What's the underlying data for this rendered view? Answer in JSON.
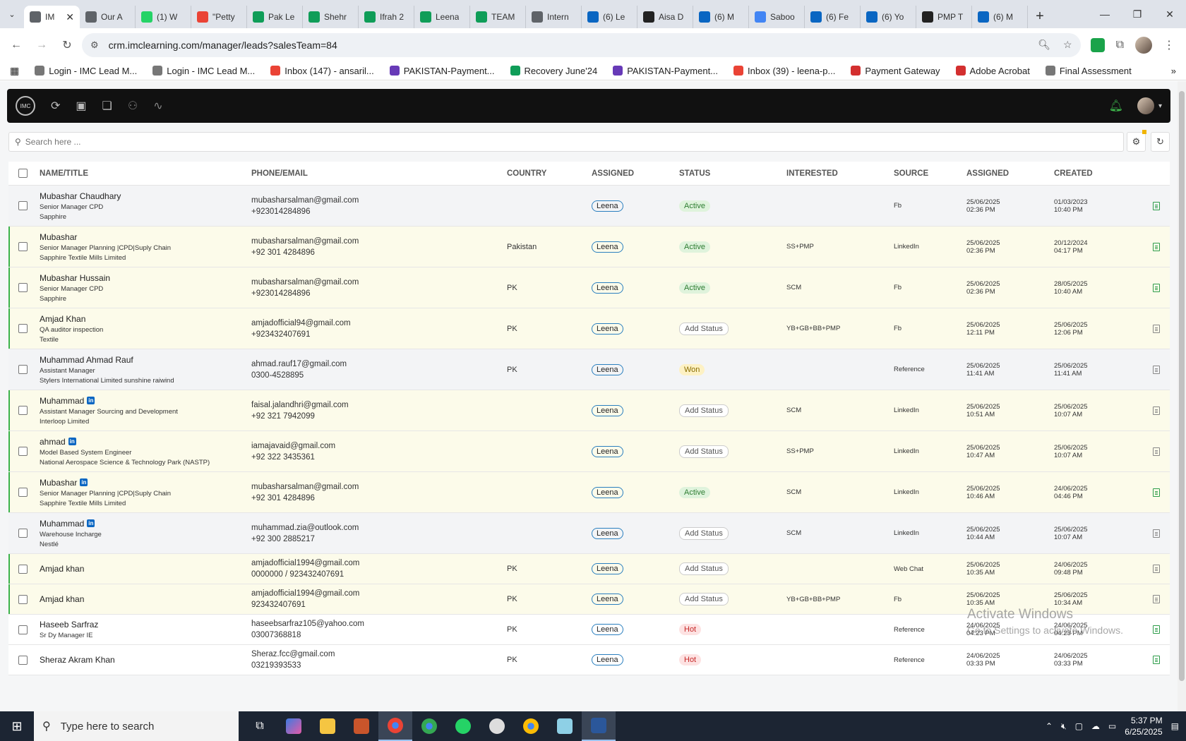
{
  "browser": {
    "tabs": [
      {
        "label": "IM",
        "active": true,
        "color": "#5f6368"
      },
      {
        "label": "Our A",
        "color": "#5f6368"
      },
      {
        "label": "(1) W",
        "color": "#25d366"
      },
      {
        "label": "\"Petty",
        "color": "#ea4335"
      },
      {
        "label": "Pak Le",
        "color": "#0f9d58"
      },
      {
        "label": "Shehr",
        "color": "#0f9d58"
      },
      {
        "label": "Ifrah 2",
        "color": "#0f9d58"
      },
      {
        "label": "Leena",
        "color": "#0f9d58"
      },
      {
        "label": "TEAM",
        "color": "#0f9d58"
      },
      {
        "label": "Intern",
        "color": "#5f6368"
      },
      {
        "label": "(6) Le",
        "color": "#0a66c2"
      },
      {
        "label": "Aisa D",
        "color": "#222"
      },
      {
        "label": "(6) M",
        "color": "#0a66c2"
      },
      {
        "label": "Saboo",
        "color": "#4285f4"
      },
      {
        "label": "(6) Fe",
        "color": "#0a66c2"
      },
      {
        "label": "(6) Yo",
        "color": "#0a66c2"
      },
      {
        "label": "PMP T",
        "color": "#222"
      },
      {
        "label": "(6) M",
        "color": "#0a66c2"
      }
    ],
    "url": "crm.imclearning.com/manager/leads?salesTeam=84",
    "bookmarks": [
      {
        "label": "Login - IMC Lead M...",
        "color": "#777"
      },
      {
        "label": "Login - IMC Lead M...",
        "color": "#777"
      },
      {
        "label": "Inbox (147) - ansaril...",
        "color": "#ea4335"
      },
      {
        "label": "PAKISTAN-Payment...",
        "color": "#673ab7"
      },
      {
        "label": "Recovery June'24",
        "color": "#0f9d58"
      },
      {
        "label": "PAKISTAN-Payment...",
        "color": "#673ab7"
      },
      {
        "label": "Inbox (39) - leena-p...",
        "color": "#ea4335"
      },
      {
        "label": "Payment Gateway",
        "color": "#d32f2f"
      },
      {
        "label": "Adobe Acrobat",
        "color": "#d32f2f"
      },
      {
        "label": "Final Assessment",
        "color": "#777"
      }
    ]
  },
  "app": {
    "logo_text": "IMC",
    "search_placeholder": "Search here ..."
  },
  "table": {
    "headers": [
      "NAME/TITLE",
      "PHONE/EMAIL",
      "COUNTRY",
      "ASSIGNED",
      "STATUS",
      "INTERESTED",
      "SOURCE",
      "ASSIGNED",
      "CREATED"
    ],
    "rows": [
      {
        "name": "Mubashar Chaudhary",
        "linkedin": false,
        "title": "Senior Manager CPD",
        "company": "Sapphire",
        "email": "mubasharsalman@gmail.com",
        "phone": "+923014284896",
        "country": "",
        "assigned": "Leena",
        "status": "Active",
        "status_type": "active",
        "interested": "",
        "source": "Fb",
        "assigned_date": "25/06/2025",
        "assigned_time": "02:36 PM",
        "created_date": "01/03/2023",
        "created_time": "10:40 PM",
        "bg": "grey",
        "bar": false,
        "doc": "g",
        "h": 58
      },
      {
        "name": "Mubashar",
        "linkedin": false,
        "title": "Senior Manager Planning |CPD|Suply Chain",
        "company": "Sapphire Textile Mills Limited",
        "email": "mubasharsalman@gmail.com",
        "phone": "+92 301 4284896",
        "country": "Pakistan",
        "assigned": "Leena",
        "status": "Active",
        "status_type": "active",
        "interested": "SS+PMP",
        "source": "LinkedIn",
        "assigned_date": "25/06/2025",
        "assigned_time": "02:36 PM",
        "created_date": "20/12/2024",
        "created_time": "04:17 PM",
        "bg": "alt",
        "bar": true,
        "doc": "g",
        "h": 58
      },
      {
        "name": "Mubashar Hussain",
        "linkedin": false,
        "title": "Senior Manager CPD",
        "company": "Sapphire",
        "email": "mubasharsalman@gmail.com",
        "phone": "+923014284896",
        "country": "PK",
        "assigned": "Leena",
        "status": "Active",
        "status_type": "active",
        "interested": "SCM",
        "source": "Fb",
        "assigned_date": "25/06/2025",
        "assigned_time": "02:36 PM",
        "created_date": "28/05/2025",
        "created_time": "10:40 AM",
        "bg": "alt",
        "bar": true,
        "doc": "g",
        "h": 58
      },
      {
        "name": "Amjad Khan",
        "linkedin": false,
        "title": "QA auditor inspection",
        "company": "Textile",
        "email": "amjadofficial94@gmail.com",
        "phone": "+923432407691",
        "country": "PK",
        "assigned": "Leena",
        "status": "Add Status",
        "status_type": "add",
        "interested": "YB+GB+BB+PMP",
        "source": "Fb",
        "assigned_date": "25/06/2025",
        "assigned_time": "12:11 PM",
        "created_date": "25/06/2025",
        "created_time": "12:06 PM",
        "bg": "alt",
        "bar": true,
        "doc": "",
        "h": 58
      },
      {
        "name": "Muhammad Ahmad Rauf",
        "linkedin": false,
        "title": "Assistant Manager",
        "company": "Stylers International Limited sunshine raiwind",
        "email": "ahmad.rauf17@gmail.com",
        "phone": "0300-4528895",
        "country": "PK",
        "assigned": "Leena",
        "status": "Won",
        "status_type": "won",
        "interested": "",
        "source": "Reference",
        "assigned_date": "25/06/2025",
        "assigned_time": "11:41 AM",
        "created_date": "25/06/2025",
        "created_time": "11:41 AM",
        "bg": "grey",
        "bar": false,
        "doc": "",
        "h": 58
      },
      {
        "name": "Muhammad",
        "linkedin": true,
        "title": "Assistant Manager Sourcing and Development",
        "company": "Interloop Limited",
        "email": "faisal.jalandhri@gmail.com",
        "phone": "+92 321 7942099",
        "country": "",
        "assigned": "Leena",
        "status": "Add Status",
        "status_type": "add",
        "interested": "SCM",
        "source": "LinkedIn",
        "assigned_date": "25/06/2025",
        "assigned_time": "10:51 AM",
        "created_date": "25/06/2025",
        "created_time": "10:07 AM",
        "bg": "alt",
        "bar": true,
        "doc": "",
        "h": 58
      },
      {
        "name": "ahmad",
        "linkedin": true,
        "title": "Model Based System Engineer",
        "company": "National Aerospace Science & Technology Park (NASTP)",
        "email": "iamajavaid@gmail.com",
        "phone": "+92 322 3435361",
        "country": "",
        "assigned": "Leena",
        "status": "Add Status",
        "status_type": "add",
        "interested": "SS+PMP",
        "source": "LinkedIn",
        "assigned_date": "25/06/2025",
        "assigned_time": "10:47 AM",
        "created_date": "25/06/2025",
        "created_time": "10:07 AM",
        "bg": "alt",
        "bar": true,
        "doc": "",
        "h": 58
      },
      {
        "name": "Mubashar",
        "linkedin": true,
        "title": "Senior Manager Planning |CPD|Suply Chain",
        "company": "Sapphire Textile Mills Limited",
        "email": "mubasharsalman@gmail.com",
        "phone": "+92 301 4284896",
        "country": "",
        "assigned": "Leena",
        "status": "Active",
        "status_type": "active",
        "interested": "SCM",
        "source": "LinkedIn",
        "assigned_date": "25/06/2025",
        "assigned_time": "10:46 AM",
        "created_date": "24/06/2025",
        "created_time": "04:46 PM",
        "bg": "alt",
        "bar": true,
        "doc": "g",
        "h": 58
      },
      {
        "name": "Muhammad",
        "linkedin": true,
        "title": "Warehouse Incharge",
        "company": "Nestlé",
        "email": "muhammad.zia@outlook.com",
        "phone": "+92 300 2885217",
        "country": "",
        "assigned": "Leena",
        "status": "Add Status",
        "status_type": "add",
        "interested": "SCM",
        "source": "LinkedIn",
        "assigned_date": "25/06/2025",
        "assigned_time": "10:44 AM",
        "created_date": "25/06/2025",
        "created_time": "10:07 AM",
        "bg": "grey",
        "bar": false,
        "doc": "",
        "h": 58
      },
      {
        "name": "Amjad khan",
        "linkedin": false,
        "title": "",
        "company": "",
        "email": "amjadofficial1994@gmail.com",
        "phone": "0000000 / 923432407691",
        "country": "PK",
        "assigned": "Leena",
        "status": "Add Status",
        "status_type": "add",
        "interested": "",
        "source": "Web Chat",
        "assigned_date": "25/06/2025",
        "assigned_time": "10:35 AM",
        "created_date": "24/06/2025",
        "created_time": "09:48 PM",
        "bg": "alt",
        "bar": true,
        "doc": "",
        "h": 43
      },
      {
        "name": "Amjad khan",
        "linkedin": false,
        "title": "",
        "company": "",
        "email": "amjadofficial1994@gmail.com",
        "phone": "923432407691",
        "country": "PK",
        "assigned": "Leena",
        "status": "Add Status",
        "status_type": "add",
        "interested": "YB+GB+BB+PMP",
        "source": "Fb",
        "assigned_date": "25/06/2025",
        "assigned_time": "10:35 AM",
        "created_date": "25/06/2025",
        "created_time": "10:34 AM",
        "bg": "alt",
        "bar": true,
        "doc": "",
        "h": 43
      },
      {
        "name": "Haseeb Sarfraz",
        "linkedin": false,
        "title": "Sr Dy Manager IE",
        "company": "",
        "email": "haseebsarfraz105@yahoo.com",
        "phone": "03007368818",
        "country": "PK",
        "assigned": "Leena",
        "status": "Hot",
        "status_type": "hot",
        "interested": "",
        "source": "Reference",
        "assigned_date": "24/06/2025",
        "assigned_time": "04:23 PM",
        "created_date": "24/06/2025",
        "created_time": "04:23 PM",
        "bg": "plain",
        "bar": false,
        "doc": "g",
        "h": 43
      },
      {
        "name": "Sheraz Akram Khan",
        "linkedin": false,
        "title": "",
        "company": "",
        "email": "Sheraz.fcc@gmail.com",
        "phone": "03219393533",
        "country": "PK",
        "assigned": "Leena",
        "status": "Hot",
        "status_type": "hot",
        "interested": "",
        "source": "Reference",
        "assigned_date": "24/06/2025",
        "assigned_time": "03:33 PM",
        "created_date": "24/06/2025",
        "created_time": "03:33 PM",
        "bg": "plain",
        "bar": false,
        "doc": "g",
        "h": 43
      }
    ]
  },
  "watermark": {
    "line1": "Activate Windows",
    "line2": "Go to Settings to activate Windows."
  },
  "taskbar": {
    "search_placeholder": "Type here to search",
    "time": "5:37 PM",
    "date": "6/25/2025"
  }
}
